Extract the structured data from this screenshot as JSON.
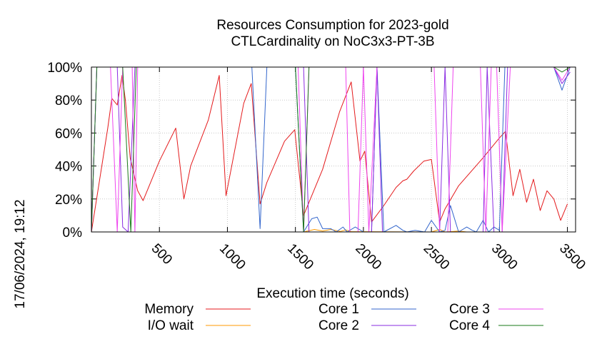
{
  "side_label": "17/06/2024, 19:12",
  "chart_data": {
    "type": "line",
    "title_lines": [
      "Resources Consumption for 2023-gold",
      "CTLCardinality on NoC3x3-PT-3B"
    ],
    "xlabel": "Execution time (seconds)",
    "ylabel": "",
    "xlim": [
      0,
      3560
    ],
    "ylim": [
      0,
      100
    ],
    "x_ticks": [
      500,
      1000,
      1500,
      2000,
      2500,
      3000,
      3500
    ],
    "y_ticks": [
      0,
      20,
      40,
      60,
      80,
      100
    ],
    "y_tick_suffix": "%",
    "grid": true,
    "legend_placement": "bottom",
    "series": [
      {
        "name": "Memory",
        "color": "#e41a1c",
        "points": [
          [
            0,
            0
          ],
          [
            120,
            63
          ],
          [
            150,
            81
          ],
          [
            190,
            77
          ],
          [
            225,
            95
          ],
          [
            250,
            80
          ],
          [
            285,
            45
          ],
          [
            340,
            25
          ],
          [
            380,
            19
          ],
          [
            500,
            43
          ],
          [
            620,
            63
          ],
          [
            680,
            20
          ],
          [
            730,
            40
          ],
          [
            860,
            68
          ],
          [
            940,
            95
          ],
          [
            990,
            22
          ],
          [
            1120,
            78
          ],
          [
            1175,
            90
          ],
          [
            1240,
            17
          ],
          [
            1290,
            30
          ],
          [
            1420,
            55
          ],
          [
            1495,
            62
          ],
          [
            1560,
            10
          ],
          [
            1700,
            38
          ],
          [
            1825,
            73
          ],
          [
            1910,
            91
          ],
          [
            1975,
            43
          ],
          [
            2010,
            49
          ],
          [
            2060,
            6
          ],
          [
            2150,
            16
          ],
          [
            2240,
            27
          ],
          [
            2290,
            31
          ],
          [
            2320,
            32
          ],
          [
            2370,
            37
          ],
          [
            2445,
            43
          ],
          [
            2500,
            44
          ],
          [
            2560,
            6
          ],
          [
            2600,
            14
          ],
          [
            2700,
            28
          ],
          [
            2880,
            45
          ],
          [
            3000,
            57
          ],
          [
            3045,
            61
          ],
          [
            3100,
            22
          ],
          [
            3150,
            38
          ],
          [
            3200,
            18
          ],
          [
            3250,
            32
          ],
          [
            3300,
            13
          ],
          [
            3350,
            25
          ],
          [
            3400,
            20
          ],
          [
            3450,
            7
          ],
          [
            3500,
            17
          ]
        ]
      },
      {
        "name": "I/O wait",
        "color": "#ff9900",
        "points": [
          [
            0,
            0
          ],
          [
            1560,
            0
          ],
          [
            1640,
            1.5
          ],
          [
            1700,
            0.5
          ],
          [
            1760,
            1.5
          ],
          [
            1830,
            0.3
          ],
          [
            1870,
            1.2
          ],
          [
            1910,
            0.2
          ],
          [
            2500,
            0
          ],
          [
            2560,
            1.5
          ],
          [
            2600,
            0
          ],
          [
            2700,
            0.5
          ],
          [
            2760,
            0
          ],
          [
            3500,
            0
          ]
        ]
      },
      {
        "name": "Core 1",
        "color": "#3366cc",
        "points": [
          [
            0,
            0
          ],
          [
            40,
            100
          ],
          [
            1180,
            100
          ],
          [
            1240,
            2
          ],
          [
            1290,
            100
          ],
          [
            1420,
            100
          ],
          [
            1500,
            100
          ],
          [
            1560,
            0
          ],
          [
            1620,
            8
          ],
          [
            1660,
            9
          ],
          [
            1700,
            2
          ],
          [
            1760,
            2
          ],
          [
            1800,
            0
          ],
          [
            1850,
            3
          ],
          [
            1880,
            0
          ],
          [
            1940,
            3
          ],
          [
            2000,
            0
          ],
          [
            2060,
            0
          ],
          [
            2100,
            100
          ],
          [
            2150,
            0
          ],
          [
            2240,
            4
          ],
          [
            2290,
            1
          ],
          [
            2320,
            0
          ],
          [
            2380,
            1
          ],
          [
            2450,
            0
          ],
          [
            2500,
            7
          ],
          [
            2560,
            0
          ],
          [
            2600,
            1
          ],
          [
            2640,
            16
          ],
          [
            2700,
            0
          ],
          [
            2760,
            3
          ],
          [
            2800,
            1
          ],
          [
            2830,
            0
          ],
          [
            2880,
            7
          ],
          [
            2920,
            0
          ],
          [
            2960,
            3
          ],
          [
            3000,
            1
          ],
          [
            3040,
            100
          ],
          [
            3400,
            100
          ],
          [
            3460,
            86
          ],
          [
            3520,
            100
          ]
        ]
      },
      {
        "name": "Core 2",
        "color": "#8a2be2",
        "points": [
          [
            0,
            0
          ],
          [
            40,
            100
          ],
          [
            190,
            100
          ],
          [
            230,
            3
          ],
          [
            270,
            0
          ],
          [
            320,
            100
          ],
          [
            1300,
            100
          ],
          [
            1560,
            100
          ],
          [
            1600,
            0
          ],
          [
            2060,
            0
          ],
          [
            2100,
            100
          ],
          [
            2140,
            0
          ],
          [
            2560,
            0
          ],
          [
            2600,
            100
          ],
          [
            2640,
            0
          ],
          [
            2880,
            0
          ],
          [
            2910,
            100
          ],
          [
            2960,
            0
          ],
          [
            3020,
            0
          ],
          [
            3060,
            100
          ],
          [
            3400,
            100
          ],
          [
            3460,
            90
          ],
          [
            3520,
            97
          ]
        ]
      },
      {
        "name": "Core 3",
        "color": "#ee44ee",
        "points": [
          [
            0,
            0
          ],
          [
            40,
            100
          ],
          [
            140,
            100
          ],
          [
            190,
            0
          ],
          [
            230,
            100
          ],
          [
            300,
            100
          ],
          [
            320,
            0
          ],
          [
            340,
            100
          ],
          [
            1520,
            100
          ],
          [
            1560,
            0
          ],
          [
            1600,
            100
          ],
          [
            1870,
            100
          ],
          [
            1900,
            0
          ],
          [
            1960,
            0
          ],
          [
            2000,
            100
          ],
          [
            2040,
            0
          ],
          [
            2100,
            100
          ],
          [
            2160,
            100
          ],
          [
            2520,
            100
          ],
          [
            2560,
            0
          ],
          [
            2620,
            0
          ],
          [
            2660,
            100
          ],
          [
            2860,
            100
          ],
          [
            2900,
            0
          ],
          [
            2940,
            100
          ],
          [
            2980,
            100
          ],
          [
            3020,
            0
          ],
          [
            3080,
            100
          ],
          [
            3400,
            100
          ],
          [
            3460,
            92
          ],
          [
            3520,
            100
          ]
        ]
      },
      {
        "name": "Core 4",
        "color": "#1a7a1a",
        "points": [
          [
            0,
            0
          ],
          [
            40,
            100
          ],
          [
            230,
            100
          ],
          [
            290,
            0
          ],
          [
            330,
            100
          ],
          [
            1500,
            100
          ],
          [
            1560,
            0
          ],
          [
            1600,
            100
          ],
          [
            3400,
            100
          ],
          [
            3460,
            97
          ],
          [
            3520,
            100
          ]
        ]
      }
    ]
  }
}
